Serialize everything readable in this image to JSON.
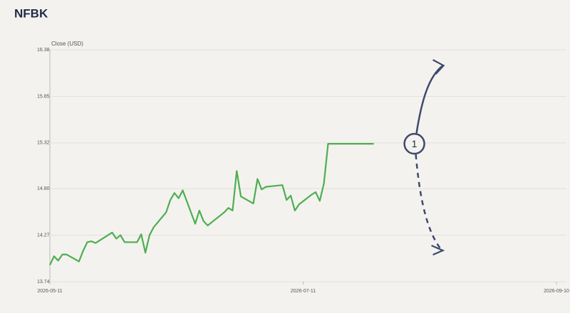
{
  "chart_data": {
    "type": "line",
    "title": "NFBK",
    "y_label": "Close (USD)",
    "x": [
      "2026-05-11",
      "2026-05-12",
      "2026-05-13",
      "2026-05-14",
      "2026-05-15",
      "2026-05-18",
      "2026-05-19",
      "2026-05-20",
      "2026-05-21",
      "2026-05-22",
      "2026-05-26",
      "2026-05-27",
      "2026-05-28",
      "2026-05-29",
      "2026-06-01",
      "2026-06-02",
      "2026-06-03",
      "2026-06-04",
      "2026-06-05",
      "2026-06-08",
      "2026-06-09",
      "2026-06-10",
      "2026-06-11",
      "2026-06-12",
      "2026-06-15",
      "2026-06-16",
      "2026-06-17",
      "2026-06-18",
      "2026-06-22",
      "2026-06-23",
      "2026-06-24",
      "2026-06-25",
      "2026-06-26",
      "2026-06-29",
      "2026-06-30",
      "2026-07-01",
      "2026-07-02",
      "2026-07-06",
      "2026-07-07",
      "2026-07-08",
      "2026-07-09",
      "2026-07-10",
      "2026-07-13",
      "2026-07-14",
      "2026-07-15",
      "2026-07-16",
      "2026-07-17",
      "2026-07-20",
      "2026-07-28"
    ],
    "values": [
      13.93,
      14.03,
      13.98,
      14.05,
      14.05,
      13.97,
      14.09,
      14.19,
      14.2,
      14.18,
      14.3,
      14.23,
      14.27,
      14.19,
      14.19,
      14.28,
      14.07,
      14.27,
      14.36,
      14.53,
      14.67,
      14.75,
      14.69,
      14.78,
      14.4,
      14.55,
      14.43,
      14.38,
      14.53,
      14.58,
      14.55,
      15.0,
      14.71,
      14.63,
      14.91,
      14.79,
      14.82,
      14.84,
      14.67,
      14.72,
      14.55,
      14.62,
      14.73,
      14.76,
      14.66,
      14.86,
      15.31,
      15.31,
      15.31
    ],
    "color": "#4caf50",
    "xlim": [
      "2026-05-11",
      "2026-09-10"
    ],
    "xticks": [
      "2026-05-11",
      "2026-07-11",
      "2026-09-10"
    ],
    "ylim": [
      13.74,
      16.38
    ],
    "yticks": [
      13.74,
      14.27,
      {
        "value": 14.8,
        "label": "14.80"
      },
      15.32,
      15.85,
      16.38
    ],
    "grid": true,
    "annotation": {
      "label": "1"
    }
  }
}
